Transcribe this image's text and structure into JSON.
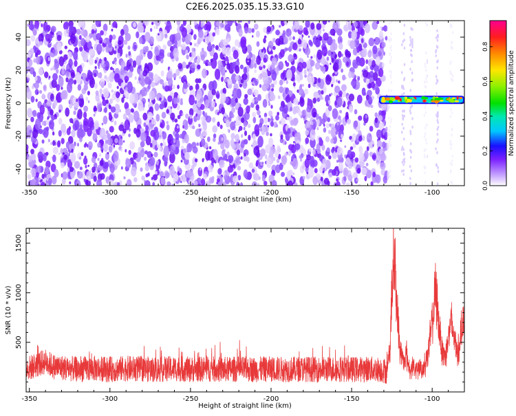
{
  "title": "C2E6.2025.035.15.33.G10",
  "chart_data": [
    {
      "type": "heatmap",
      "xlabel": "Height of straight line (km)",
      "ylabel": "Frequency (Hz)",
      "xlim": [
        -352,
        -80
      ],
      "ylim": [
        -50,
        50
      ],
      "xticks": [
        -350,
        -300,
        -250,
        -200,
        -150,
        -100
      ],
      "yticks": [
        -40,
        -20,
        0,
        20,
        40
      ],
      "colorbar": {
        "label": "Normalized spectral amplitude",
        "range": [
          0,
          0.95
        ],
        "ticks": [
          0.0,
          0.2,
          0.4,
          0.6,
          0.8
        ],
        "tick_labels": [
          "0.0",
          "0.2",
          "0.4",
          "0.6",
          "0.8"
        ]
      },
      "signal_band": {
        "x_start": -133,
        "x_end": -80,
        "frequency_hz": 2,
        "peak_amplitude": 0.9
      },
      "noise_extent_x": [
        -352,
        -128
      ],
      "grid": false
    },
    {
      "type": "line",
      "xlabel": "Height of straight line (km)",
      "ylabel": "SNR (10 * v/v)",
      "xlim": [
        -352,
        -80
      ],
      "ylim": [
        0,
        1650
      ],
      "xticks": [
        -350,
        -300,
        -250,
        -200,
        -150,
        -100
      ],
      "yticks": [
        500,
        1000,
        1500
      ],
      "color": "#e8393a",
      "series": [
        {
          "points": [
            [
              -352,
              200
            ],
            [
              -345,
              250
            ],
            [
              -340,
              280
            ],
            [
              -335,
              230
            ],
            [
              -330,
              220
            ],
            [
              -320,
              200
            ],
            [
              -310,
              210
            ],
            [
              -300,
              200
            ],
            [
              -290,
              210
            ],
            [
              -280,
              205
            ],
            [
              -270,
              200
            ],
            [
              -260,
              210
            ],
            [
              -250,
              200
            ],
            [
              -240,
              205
            ],
            [
              -230,
              200
            ],
            [
              -220,
              205
            ],
            [
              -210,
              200
            ],
            [
              -200,
              205
            ],
            [
              -190,
              200
            ],
            [
              -180,
              205
            ],
            [
              -170,
              200
            ],
            [
              -160,
              205
            ],
            [
              -150,
              200
            ],
            [
              -140,
              205
            ],
            [
              -132,
              200
            ],
            [
              -128,
              180
            ],
            [
              -126,
              500
            ],
            [
              -125,
              1000
            ],
            [
              -124,
              1450
            ],
            [
              -123,
              1250
            ],
            [
              -122,
              900
            ],
            [
              -121,
              650
            ],
            [
              -120,
              450
            ],
            [
              -118,
              300
            ],
            [
              -116,
              380
            ],
            [
              -114,
              220
            ],
            [
              -112,
              260
            ],
            [
              -110,
              200
            ],
            [
              -108,
              250
            ],
            [
              -106,
              220
            ],
            [
              -104,
              300
            ],
            [
              -102,
              450
            ],
            [
              -100,
              700
            ],
            [
              -98,
              1000
            ],
            [
              -97,
              900
            ],
            [
              -96,
              700
            ],
            [
              -94,
              450
            ],
            [
              -92,
              350
            ],
            [
              -90,
              550
            ],
            [
              -88,
              700
            ],
            [
              -86,
              500
            ],
            [
              -84,
              400
            ],
            [
              -82,
              600
            ],
            [
              -81,
              800
            ],
            [
              -80,
              500
            ]
          ]
        }
      ],
      "grid": false
    }
  ]
}
